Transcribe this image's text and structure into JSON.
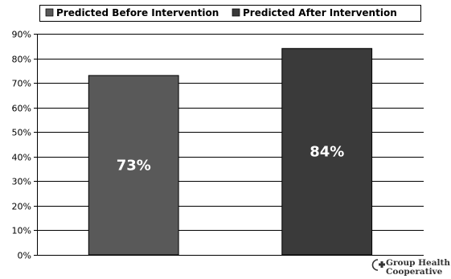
{
  "chart_data": {
    "type": "bar",
    "categories": [
      "Predicted Before Intervention",
      "Predicted After Intervention"
    ],
    "values": [
      73,
      84
    ],
    "data_labels": [
      "73%",
      "84%"
    ],
    "colors": [
      "#595959",
      "#3a3a3a"
    ],
    "ylim": [
      0,
      90
    ],
    "yticks": [
      0,
      10,
      20,
      30,
      40,
      50,
      60,
      70,
      80,
      90
    ],
    "ytick_labels": [
      "0%",
      "10%",
      "20%",
      "30%",
      "40%",
      "50%",
      "60%",
      "70%",
      "80%",
      "90%"
    ],
    "grid": true,
    "legend": {
      "placement": "top",
      "entries": [
        {
          "label": "Predicted Before Intervention",
          "color": "#595959"
        },
        {
          "label": "Predicted After Intervention",
          "color": "#3a3a3a"
        }
      ]
    }
  },
  "logo": {
    "line1": "Group Health",
    "line2": "Cooperative",
    "icon": "plus-cross-icon"
  }
}
